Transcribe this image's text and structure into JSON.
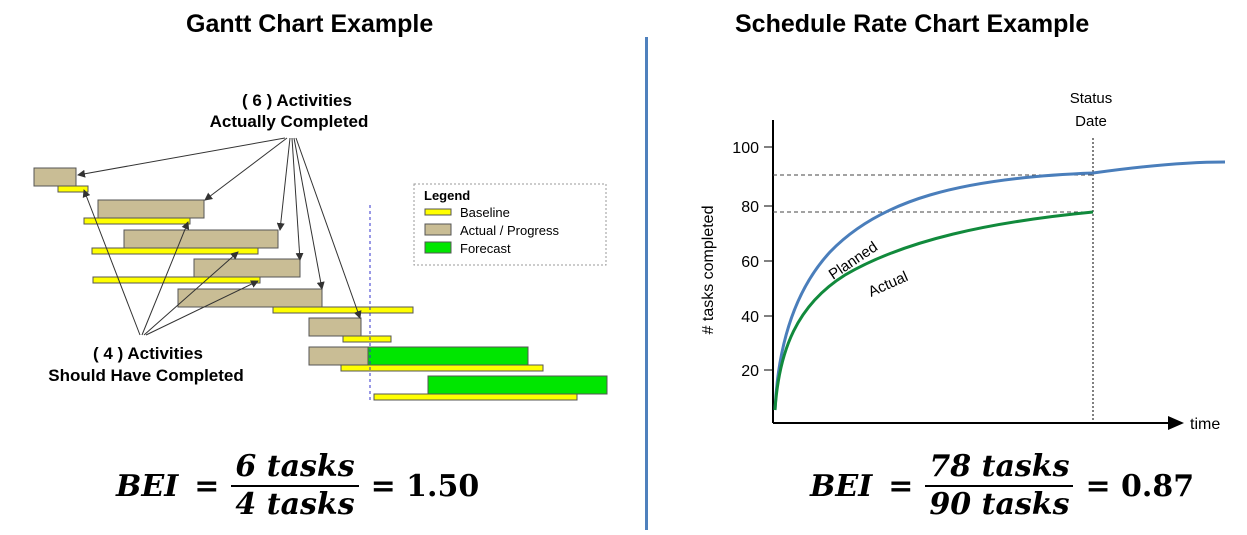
{
  "left_panel": {
    "title": "Gantt Chart Example",
    "annotation_top_line1": "( 6 ) Activities",
    "annotation_top_line2": "Actually Completed",
    "annotation_bottom_line1": "( 4 ) Activities",
    "annotation_bottom_line2": "Should Have Completed",
    "legend": {
      "title": "Legend",
      "items": [
        {
          "label": "Baseline",
          "color": "#ffff00"
        },
        {
          "label": "Actual / Progress",
          "color": "#c9bd95"
        },
        {
          "label": "Forecast",
          "color": "#00e600"
        }
      ]
    },
    "formula": {
      "lhs": "BEI",
      "eq": "=",
      "numerator": "6 tasks",
      "denominator": "4 tasks",
      "result": "= 1.50"
    }
  },
  "right_panel": {
    "title": "Schedule Rate Chart Example",
    "formula": {
      "lhs": "BEI",
      "eq": "=",
      "numerator": "78 tasks",
      "denominator": "90 tasks",
      "result": "= 0.87"
    }
  },
  "chart_data": {
    "type": "line",
    "title": "Schedule Rate Chart Example",
    "xlabel": "time",
    "ylabel": "# tasks completed",
    "yticks": [
      "20",
      "40",
      "60",
      "80",
      "100"
    ],
    "ylim": [
      0,
      110
    ],
    "status_date_label_line1": "Status",
    "status_date_label_line2": "Date",
    "series": [
      {
        "name": "Planned",
        "color": "#4a7ebb",
        "end_value": 90
      },
      {
        "name": "Actual",
        "color": "#118a3c",
        "end_value": 78
      }
    ]
  }
}
